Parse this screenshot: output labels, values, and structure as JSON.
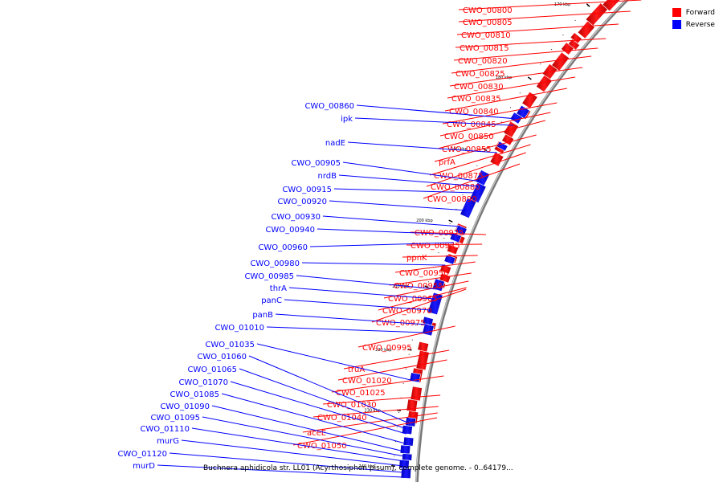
{
  "legend": {
    "forward_label": "Forward",
    "reverse_label": "Reverse",
    "forward_color": "#ff0000",
    "reverse_color": "#0000ff"
  },
  "caption": "Buchnera aphidicola str. LL01 (Acyrthosiphon pisum), complete genome. - 0..64179...",
  "ticks": [
    "170 kbp",
    "180 kbp",
    "190 kbp",
    "200 kbp",
    "210 kbp",
    "220 kbp",
    "230 kbp",
    "240 kbp"
  ],
  "genes_forward": [
    "CWO_00800",
    "CWO_00805",
    "CWO_00810",
    "CWO_00815",
    "CWO_00820",
    "CWO_00825",
    "CWO_00830",
    "CWO_00835",
    "CWO_00840",
    "CWO_00845",
    "CWO_00850",
    "CWO_00855",
    "prfA",
    "CWO_00875",
    "CWO_00880",
    "CWO_00890",
    "CWO_00925",
    "CWO_00935",
    "ppnK",
    "CWO_00950",
    "CWO_00955",
    "CWO_00965",
    "CWO_00970",
    "CWO_00975",
    "CWO_00995",
    "truA",
    "CWO_01020",
    "CWO_01025",
    "CWO_01030",
    "CWO_01040",
    "aceE",
    "CWO_01050"
  ],
  "genes_reverse": [
    "CWO_00860",
    "ipk",
    "nadE",
    "CWO_00905",
    "nrdB",
    "CWO_00915",
    "CWO_00920",
    "CWO_00930",
    "CWO_00940",
    "CWO_00960",
    "CWO_00980",
    "CWO_00985",
    "thrA",
    "panC",
    "panB",
    "CWO_01010",
    "CWO_01035",
    "CWO_01060",
    "CWO_01065",
    "CWO_01070",
    "CWO_01085",
    "CWO_01090",
    "CWO_01095",
    "CWO_01110",
    "murG",
    "CWO_01120",
    "murD"
  ]
}
